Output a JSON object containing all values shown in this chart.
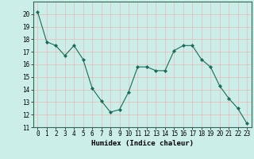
{
  "x": [
    0,
    1,
    2,
    3,
    4,
    5,
    6,
    7,
    8,
    9,
    10,
    11,
    12,
    13,
    14,
    15,
    16,
    17,
    18,
    19,
    20,
    21,
    22,
    23
  ],
  "y": [
    20.2,
    17.8,
    17.5,
    16.7,
    17.5,
    16.4,
    14.1,
    13.1,
    12.2,
    12.4,
    13.8,
    15.8,
    15.8,
    15.5,
    15.5,
    17.1,
    17.5,
    17.5,
    16.4,
    15.8,
    14.3,
    13.3,
    12.5,
    11.3
  ],
  "line_color": "#1a6b5a",
  "marker": "D",
  "marker_size": 2,
  "bg_color": "#cceee8",
  "grid_color": "#e8b8b8",
  "xlabel": "Humidex (Indice chaleur)",
  "ylim": [
    11,
    21
  ],
  "xlim": [
    -0.5,
    23.5
  ],
  "yticks": [
    11,
    12,
    13,
    14,
    15,
    16,
    17,
    18,
    19,
    20
  ],
  "xticks": [
    0,
    1,
    2,
    3,
    4,
    5,
    6,
    7,
    8,
    9,
    10,
    11,
    12,
    13,
    14,
    15,
    16,
    17,
    18,
    19,
    20,
    21,
    22,
    23
  ],
  "tick_label_size": 5.5,
  "xlabel_size": 6.5
}
